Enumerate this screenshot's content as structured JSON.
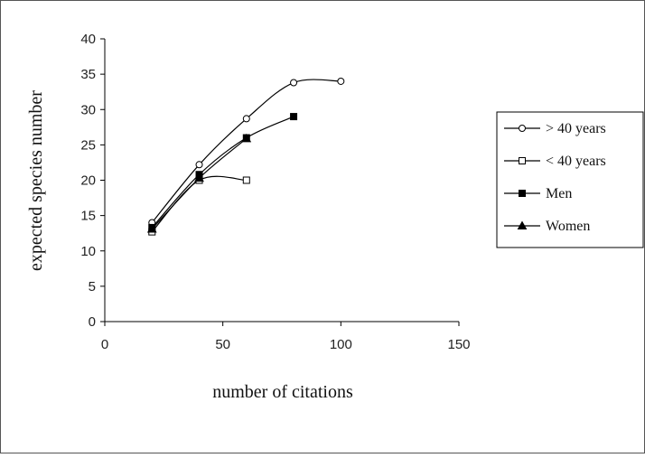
{
  "chart_data": {
    "type": "line",
    "title": "",
    "xlabel": "number of citations",
    "ylabel": "expected species number",
    "xlim": [
      0,
      150
    ],
    "ylim": [
      0,
      40
    ],
    "x_ticks": [
      "0",
      "50",
      "100",
      "150"
    ],
    "y_ticks": [
      "0",
      "5",
      "10",
      "15",
      "20",
      "25",
      "30",
      "35",
      "40"
    ],
    "grid": false,
    "legend_position": "right",
    "series": [
      {
        "name": "> 40 years",
        "marker": "circle-open",
        "color": "#000000",
        "x": [
          20,
          40,
          60,
          80,
          100
        ],
        "y": [
          14,
          22.2,
          28.7,
          33.8,
          34
        ]
      },
      {
        "name": "< 40 years",
        "marker": "square-open",
        "color": "#000000",
        "x": [
          20,
          40,
          60
        ],
        "y": [
          12.7,
          20,
          20
        ]
      },
      {
        "name": "Men",
        "marker": "square-filled",
        "color": "#000000",
        "x": [
          20,
          40,
          60,
          80
        ],
        "y": [
          13.3,
          20.8,
          26,
          29
        ]
      },
      {
        "name": "Women",
        "marker": "triangle-filled",
        "color": "#000000",
        "x": [
          20,
          40,
          60
        ],
        "y": [
          13.1,
          20.3,
          25.9
        ]
      }
    ]
  }
}
